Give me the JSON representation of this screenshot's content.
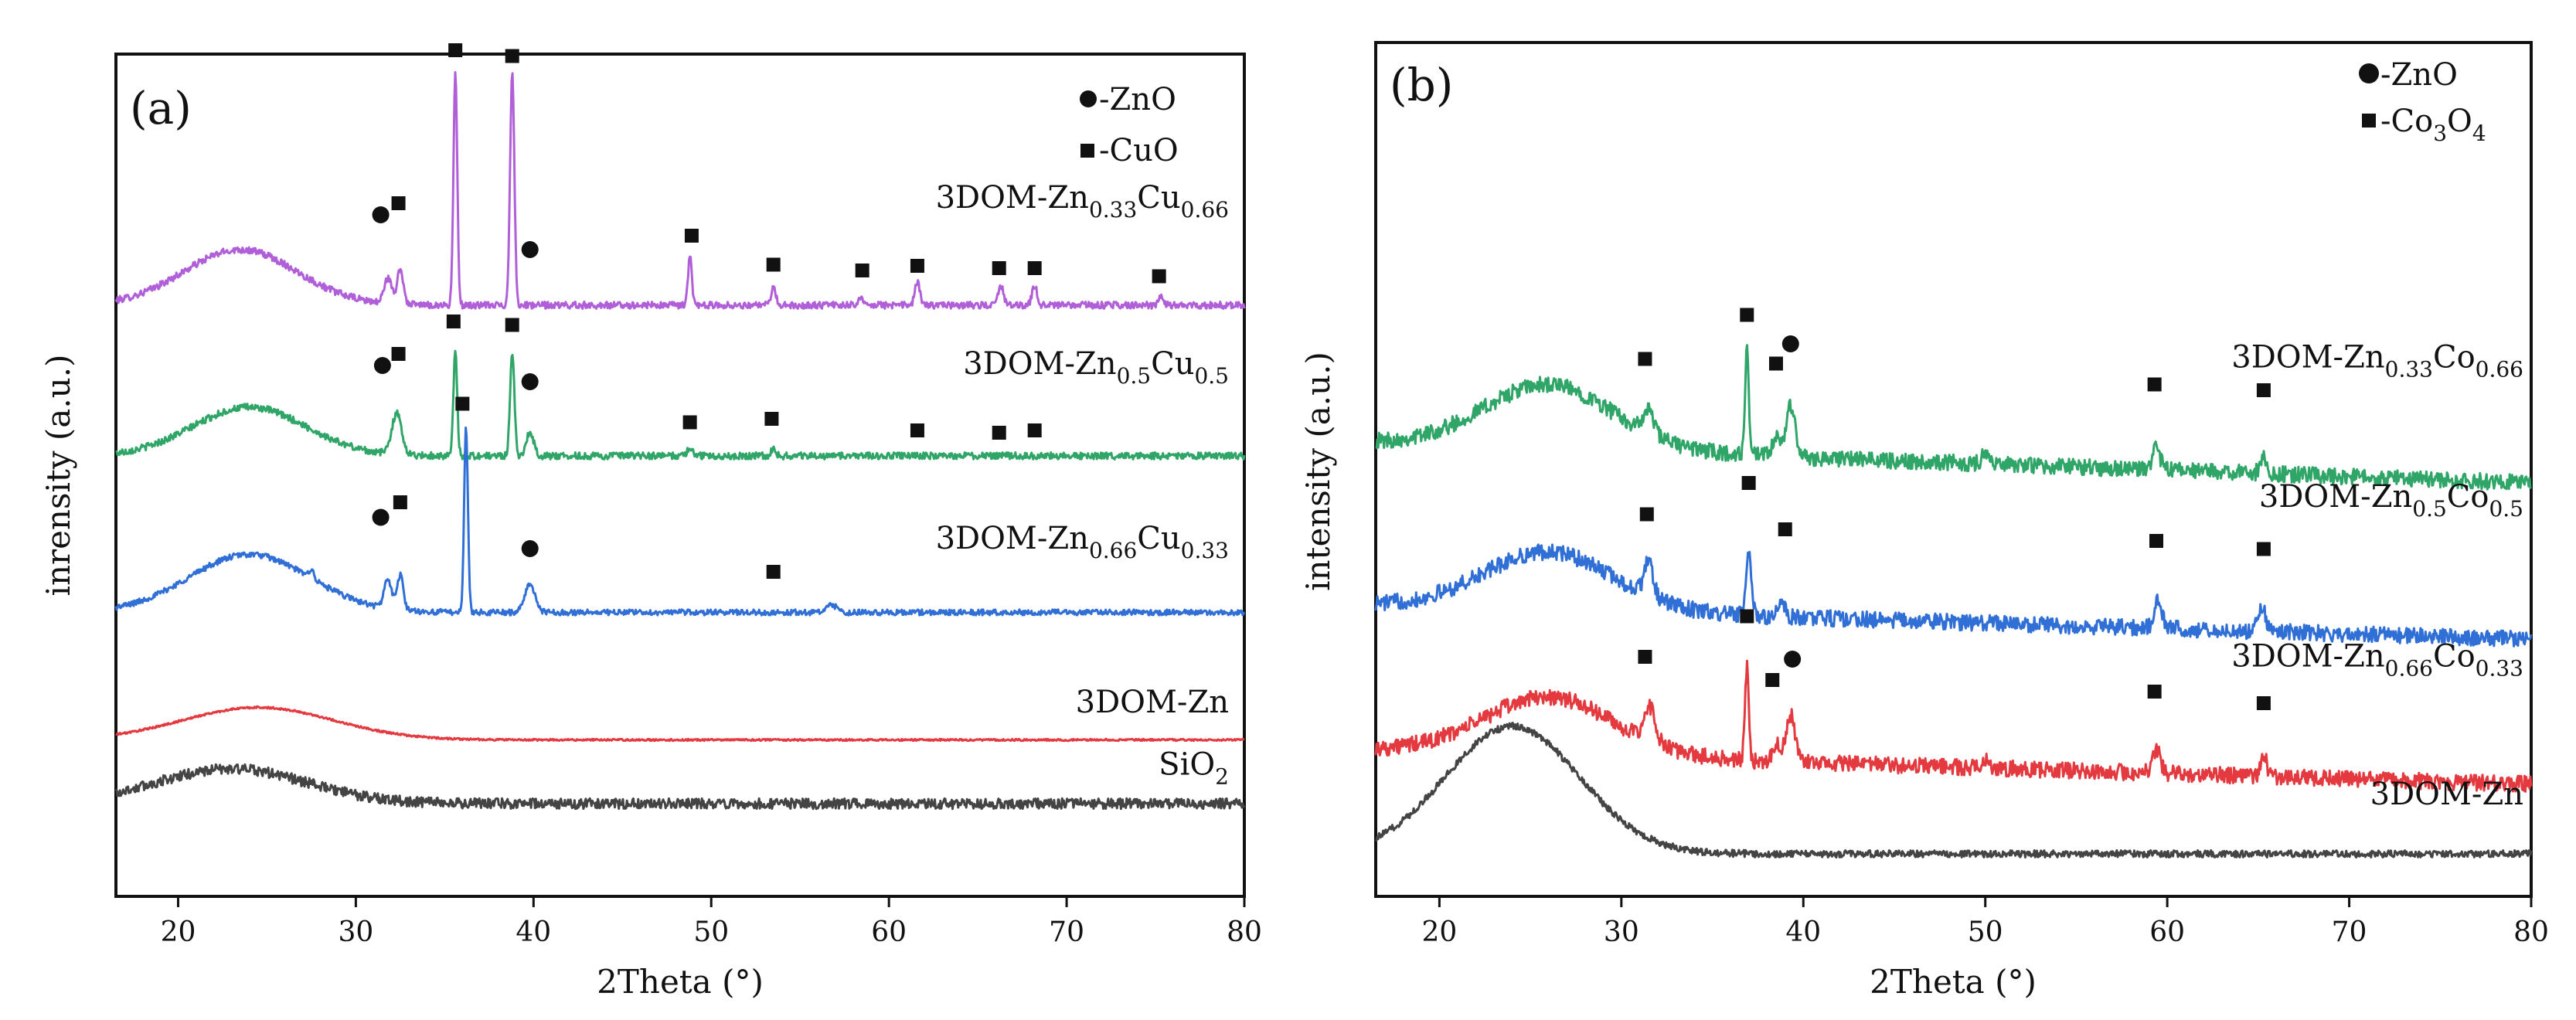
{
  "chart_data": [
    {
      "type": "line",
      "panel_label": "(a)",
      "xlabel": "2Theta (°)",
      "ylabel": "inrensity (a.u.)",
      "xlim": [
        16.5,
        80
      ],
      "xticks": [
        20,
        30,
        40,
        50,
        60,
        70,
        80
      ],
      "grid": false,
      "legend_position": "top-right",
      "legend": [
        {
          "marker": "circle",
          "label": "-ZnO"
        },
        {
          "marker": "square",
          "label": "-CuO"
        }
      ],
      "series": [
        {
          "name": "3DOM-Zn0.33Cu0.66",
          "label_main": "3DOM-Zn",
          "label_sub1": "0.33",
          "label_mid": "Cu",
          "label_sub2": "0.66",
          "color": "#b05fd8",
          "offset": 4.3,
          "noise": 0.03,
          "hump": {
            "center": 23.5,
            "height": 0.48,
            "width": 4.5
          },
          "end_level": 0.0,
          "peaks": [
            {
              "x": 31.8,
              "h": 0.22,
              "w": 0.3
            },
            {
              "x": 32.5,
              "h": 0.3,
              "w": 0.25
            },
            {
              "x": 35.6,
              "h": 2.0,
              "w": 0.15
            },
            {
              "x": 38.8,
              "h": 2.0,
              "w": 0.17
            },
            {
              "x": 48.8,
              "h": 0.42,
              "w": 0.15
            },
            {
              "x": 53.5,
              "h": 0.14,
              "w": 0.2
            },
            {
              "x": 58.4,
              "h": 0.08,
              "w": 0.2
            },
            {
              "x": 61.6,
              "h": 0.2,
              "w": 0.2
            },
            {
              "x": 66.3,
              "h": 0.17,
              "w": 0.2
            },
            {
              "x": 68.2,
              "h": 0.17,
              "w": 0.2
            },
            {
              "x": 75.3,
              "h": 0.07,
              "w": 0.2
            }
          ],
          "markers": [
            {
              "x": 31.4,
              "type": "circle",
              "h": 0.78
            },
            {
              "x": 32.4,
              "type": "square",
              "h": 0.88
            },
            {
              "x": 35.6,
              "type": "square",
              "h": 2.2
            },
            {
              "x": 38.8,
              "type": "square",
              "h": 2.15
            },
            {
              "x": 39.8,
              "type": "circle",
              "h": 0.48
            },
            {
              "x": 48.9,
              "type": "square",
              "h": 0.6
            },
            {
              "x": 53.5,
              "type": "square",
              "h": 0.35
            },
            {
              "x": 58.5,
              "type": "square",
              "h": 0.3
            },
            {
              "x": 61.6,
              "type": "square",
              "h": 0.34
            },
            {
              "x": 66.2,
              "type": "square",
              "h": 0.32
            },
            {
              "x": 68.2,
              "type": "square",
              "h": 0.32
            },
            {
              "x": 75.2,
              "type": "square",
              "h": 0.25
            }
          ]
        },
        {
          "name": "3DOM-Zn0.5Cu0.5",
          "label_main": "3DOM-Zn",
          "label_sub1": "0.5",
          "label_mid": "Cu",
          "label_sub2": "0.5",
          "color": "#2fa567",
          "offset": 3.0,
          "noise": 0.03,
          "hump": {
            "center": 24,
            "height": 0.42,
            "width": 4.5
          },
          "end_level": 0.0,
          "peaks": [
            {
              "x": 32.3,
              "h": 0.35,
              "w": 0.4
            },
            {
              "x": 35.6,
              "h": 0.9,
              "w": 0.15
            },
            {
              "x": 38.8,
              "h": 0.9,
              "w": 0.17
            },
            {
              "x": 39.8,
              "h": 0.2,
              "w": 0.3
            },
            {
              "x": 48.8,
              "h": 0.08,
              "w": 0.2
            },
            {
              "x": 53.5,
              "h": 0.06,
              "w": 0.2
            }
          ],
          "markers": [
            {
              "x": 31.5,
              "type": "circle",
              "h": 0.78
            },
            {
              "x": 32.4,
              "type": "square",
              "h": 0.88
            },
            {
              "x": 35.5,
              "type": "square",
              "h": 1.16
            },
            {
              "x": 38.8,
              "type": "square",
              "h": 1.13
            },
            {
              "x": 39.8,
              "type": "circle",
              "h": 0.64
            },
            {
              "x": 48.8,
              "type": "square",
              "h": 0.29
            },
            {
              "x": 53.4,
              "type": "square",
              "h": 0.32
            },
            {
              "x": 61.6,
              "type": "square",
              "h": 0.22
            },
            {
              "x": 66.2,
              "type": "square",
              "h": 0.2
            },
            {
              "x": 68.2,
              "type": "square",
              "h": 0.22
            }
          ]
        },
        {
          "name": "3DOM-Zn0.66Cu0.33",
          "label_main": "3DOM-Zn",
          "label_sub1": "0.66",
          "label_mid": "Cu",
          "label_sub2": "0.33",
          "color": "#2f6fd6",
          "offset": 1.65,
          "noise": 0.025,
          "hump": {
            "center": 24,
            "height": 0.5,
            "width": 4.8
          },
          "end_level": 0.0,
          "peaks": [
            {
              "x": 27.5,
              "h": 0.08,
              "w": 0.2
            },
            {
              "x": 31.8,
              "h": 0.25,
              "w": 0.3
            },
            {
              "x": 32.5,
              "h": 0.3,
              "w": 0.25
            },
            {
              "x": 36.2,
              "h": 1.6,
              "w": 0.15
            },
            {
              "x": 39.8,
              "h": 0.25,
              "w": 0.4
            },
            {
              "x": 56.8,
              "h": 0.06,
              "w": 0.4
            }
          ],
          "markers": [
            {
              "x": 31.4,
              "type": "circle",
              "h": 0.82
            },
            {
              "x": 32.5,
              "type": "square",
              "h": 0.95
            },
            {
              "x": 36.0,
              "type": "square",
              "h": 1.8
            },
            {
              "x": 39.8,
              "type": "circle",
              "h": 0.55
            },
            {
              "x": 53.5,
              "type": "square",
              "h": 0.35
            }
          ]
        },
        {
          "name": "3DOM-Zn",
          "label_main": "3DOM-Zn",
          "label_sub1": "",
          "label_mid": "",
          "label_sub2": "",
          "color": "#e3393f",
          "offset": 0.55,
          "noise": 0.008,
          "hump": {
            "center": 24.5,
            "height": 0.28,
            "width": 6
          },
          "end_level": 0.0,
          "peaks": [],
          "markers": []
        },
        {
          "name": "SiO2",
          "label_main": "SiO",
          "label_sub1": "2",
          "label_mid": "",
          "label_sub2": "",
          "color": "#444444",
          "offset": 0.0,
          "noise": 0.045,
          "hump": {
            "center": 23,
            "height": 0.3,
            "width": 6
          },
          "end_level": 0.0,
          "peaks": [],
          "markers": []
        }
      ]
    },
    {
      "type": "line",
      "panel_label": "(b)",
      "xlabel": "2Theta (°)",
      "ylabel": "intensity (a.u.)",
      "xlim": [
        16.5,
        80
      ],
      "xticks": [
        20,
        30,
        40,
        50,
        60,
        70,
        80
      ],
      "grid": false,
      "legend_position": "top-right",
      "legend": [
        {
          "marker": "circle",
          "label": "-ZnO"
        },
        {
          "marker": "square",
          "label": "-Co",
          "sub": "3",
          "label_tail": "O",
          "sub2": "4"
        }
      ],
      "series": [
        {
          "name": "3DOM-Zn0.33Co0.66",
          "label_main": "3DOM-Zn",
          "label_sub1": "0.33",
          "label_mid": "Co",
          "label_sub2": "0.66",
          "color": "#2fa567",
          "offset": 3.55,
          "noise": 0.07,
          "hump": {
            "center": 26,
            "height": 0.55,
            "width": 5
          },
          "end_level": -0.35,
          "peaks": [
            {
              "x": 31.5,
              "h": 0.2,
              "w": 0.4
            },
            {
              "x": 36.9,
              "h": 0.9,
              "w": 0.15
            },
            {
              "x": 38.5,
              "h": 0.15,
              "w": 0.3
            },
            {
              "x": 39.3,
              "h": 0.45,
              "w": 0.35
            },
            {
              "x": 50,
              "h": 0.08,
              "w": 0.3
            },
            {
              "x": 59.4,
              "h": 0.18,
              "w": 0.3
            },
            {
              "x": 65.3,
              "h": 0.15,
              "w": 0.25
            }
          ],
          "markers": [
            {
              "x": 31.3,
              "type": "square",
              "h": 0.72
            },
            {
              "x": 36.9,
              "type": "square",
              "h": 1.1
            },
            {
              "x": 38.5,
              "type": "square",
              "h": 0.68
            },
            {
              "x": 39.3,
              "type": "circle",
              "h": 0.85
            },
            {
              "x": 59.3,
              "type": "square",
              "h": 0.5
            },
            {
              "x": 65.3,
              "type": "square",
              "h": 0.45
            }
          ]
        },
        {
          "name": "3DOM-Zn0.5Co0.5",
          "label_main": "3DOM-Zn",
          "label_sub1": "0.5",
          "label_mid": "Co",
          "label_sub2": "0.5",
          "color": "#2f6fd6",
          "offset": 2.15,
          "noise": 0.07,
          "hump": {
            "center": 26,
            "height": 0.5,
            "width": 5
          },
          "end_level": -0.3,
          "peaks": [
            {
              "x": 31.5,
              "h": 0.3,
              "w": 0.35
            },
            {
              "x": 37.0,
              "h": 0.55,
              "w": 0.2
            },
            {
              "x": 38.8,
              "h": 0.1,
              "w": 0.3
            },
            {
              "x": 59.5,
              "h": 0.25,
              "w": 0.3
            },
            {
              "x": 65.2,
              "h": 0.2,
              "w": 0.3
            }
          ],
          "markers": [
            {
              "x": 31.4,
              "type": "square",
              "h": 0.78
            },
            {
              "x": 37.0,
              "type": "square",
              "h": 1.05
            },
            {
              "x": 39.0,
              "type": "square",
              "h": 0.65
            },
            {
              "x": 59.4,
              "type": "square",
              "h": 0.55
            },
            {
              "x": 65.3,
              "type": "square",
              "h": 0.48
            }
          ]
        },
        {
          "name": "3DOM-Zn0.66Co0.33",
          "label_main": "3DOM-Zn",
          "label_sub1": "0.66",
          "label_mid": "Co",
          "label_sub2": "0.33",
          "color": "#e3393f",
          "offset": 0.9,
          "noise": 0.07,
          "hump": {
            "center": 26,
            "height": 0.5,
            "width": 5
          },
          "end_level": -0.3,
          "peaks": [
            {
              "x": 31.6,
              "h": 0.3,
              "w": 0.4
            },
            {
              "x": 36.9,
              "h": 0.8,
              "w": 0.15
            },
            {
              "x": 38.5,
              "h": 0.15,
              "w": 0.3
            },
            {
              "x": 39.3,
              "h": 0.4,
              "w": 0.35
            },
            {
              "x": 50,
              "h": 0.08,
              "w": 0.3
            },
            {
              "x": 59.4,
              "h": 0.2,
              "w": 0.3
            },
            {
              "x": 65.3,
              "h": 0.18,
              "w": 0.25
            }
          ],
          "markers": [
            {
              "x": 31.3,
              "type": "square",
              "h": 0.8
            },
            {
              "x": 36.9,
              "type": "square",
              "h": 1.15
            },
            {
              "x": 38.3,
              "type": "square",
              "h": 0.6
            },
            {
              "x": 39.4,
              "type": "circle",
              "h": 0.78
            },
            {
              "x": 59.3,
              "type": "square",
              "h": 0.5
            },
            {
              "x": 65.3,
              "type": "square",
              "h": 0.4
            }
          ]
        },
        {
          "name": "3DOM-Zn",
          "label_main": "3DOM-Zn",
          "label_sub1": "",
          "label_mid": "",
          "label_sub2": "",
          "color": "#444444",
          "offset": 0.0,
          "noise": 0.03,
          "hump": {
            "center": 24,
            "height": 1.1,
            "width": 5.2
          },
          "end_level": 0.0,
          "peaks": [],
          "markers": []
        }
      ]
    }
  ]
}
